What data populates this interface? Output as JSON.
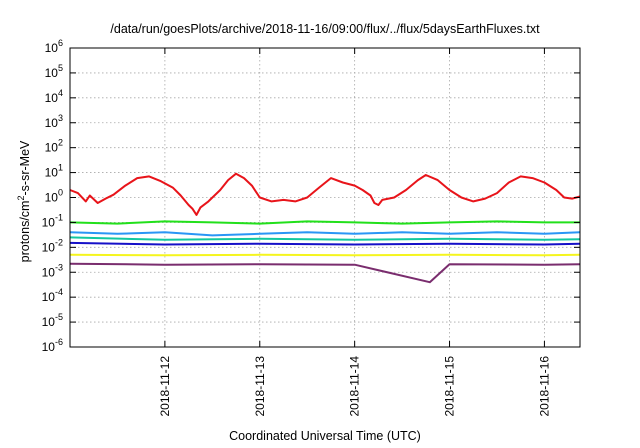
{
  "chart_data": {
    "type": "line",
    "title": "/data/run/goesPlots/archive/2018-11-16/09:00/flux/../flux/5daysEarthFluxes.txt",
    "xlabel": "Coordinated Universal Time (UTC)",
    "ylabel": {
      "base": "protons/cm",
      "sup": "2",
      "rest": "-s-sr-MeV"
    },
    "x_ticks": [
      "2018-11-12",
      "2018-11-13",
      "2018-11-14",
      "2018-11-15",
      "2018-11-16"
    ],
    "xlim": [
      "2018-11-11 00:00",
      "2018-11-16 09:00"
    ],
    "y_scale": "log",
    "ylim": [
      1e-06,
      1000000.0
    ],
    "y_ticks": [
      {
        "base": "10",
        "exp": "6"
      },
      {
        "base": "10",
        "exp": "5"
      },
      {
        "base": "10",
        "exp": "4"
      },
      {
        "base": "10",
        "exp": "3"
      },
      {
        "base": "10",
        "exp": "2"
      },
      {
        "base": "10",
        "exp": "1"
      },
      {
        "base": "10",
        "exp": "0"
      },
      {
        "base": "10",
        "exp": "-1"
      },
      {
        "base": "10",
        "exp": "-2"
      },
      {
        "base": "10",
        "exp": "-3"
      },
      {
        "base": "10",
        "exp": "-4"
      },
      {
        "base": "10",
        "exp": "-5"
      },
      {
        "base": "10",
        "exp": "-6"
      }
    ],
    "grid": true,
    "series": [
      {
        "color": "#e8141a",
        "values": [
          {
            "x": "2018-11-11 00:00",
            "y": 2.0
          },
          {
            "x": "2018-11-11 02:00",
            "y": 1.5
          },
          {
            "x": "2018-11-11 04:00",
            "y": 0.7
          },
          {
            "x": "2018-11-11 05:00",
            "y": 1.2
          },
          {
            "x": "2018-11-11 07:00",
            "y": 0.6
          },
          {
            "x": "2018-11-11 09:00",
            "y": 0.9
          },
          {
            "x": "2018-11-11 11:00",
            "y": 1.3
          },
          {
            "x": "2018-11-11 14:00",
            "y": 3.0
          },
          {
            "x": "2018-11-11 17:00",
            "y": 6.0
          },
          {
            "x": "2018-11-11 20:00",
            "y": 7.0
          },
          {
            "x": "2018-11-11 23:00",
            "y": 4.5
          },
          {
            "x": "2018-11-12 02:00",
            "y": 2.5
          },
          {
            "x": "2018-11-12 04:00",
            "y": 1.2
          },
          {
            "x": "2018-11-12 06:00",
            "y": 0.5
          },
          {
            "x": "2018-11-12 07:00",
            "y": 0.35
          },
          {
            "x": "2018-11-12 08:00",
            "y": 0.2
          },
          {
            "x": "2018-11-12 09:00",
            "y": 0.4
          },
          {
            "x": "2018-11-12 11:00",
            "y": 0.7
          },
          {
            "x": "2018-11-12 14:00",
            "y": 2.0
          },
          {
            "x": "2018-11-12 16:00",
            "y": 5.0
          },
          {
            "x": "2018-11-12 18:00",
            "y": 9.0
          },
          {
            "x": "2018-11-12 20:00",
            "y": 6.0
          },
          {
            "x": "2018-11-12 22:00",
            "y": 3.0
          },
          {
            "x": "2018-11-13 00:00",
            "y": 1.0
          },
          {
            "x": "2018-11-13 03:00",
            "y": 0.7
          },
          {
            "x": "2018-11-13 06:00",
            "y": 0.8
          },
          {
            "x": "2018-11-13 09:00",
            "y": 0.7
          },
          {
            "x": "2018-11-13 12:00",
            "y": 1.0
          },
          {
            "x": "2018-11-13 15:00",
            "y": 2.5
          },
          {
            "x": "2018-11-13 18:00",
            "y": 6.0
          },
          {
            "x": "2018-11-13 21:00",
            "y": 4.0
          },
          {
            "x": "2018-11-14 00:00",
            "y": 3.0
          },
          {
            "x": "2018-11-14 02:00",
            "y": 2.0
          },
          {
            "x": "2018-11-14 04:00",
            "y": 1.2
          },
          {
            "x": "2018-11-14 05:00",
            "y": 0.6
          },
          {
            "x": "2018-11-14 06:00",
            "y": 0.5
          },
          {
            "x": "2018-11-14 07:00",
            "y": 0.8
          },
          {
            "x": "2018-11-14 10:00",
            "y": 1.0
          },
          {
            "x": "2018-11-14 13:00",
            "y": 2.0
          },
          {
            "x": "2018-11-14 16:00",
            "y": 5.0
          },
          {
            "x": "2018-11-14 18:00",
            "y": 8.0
          },
          {
            "x": "2018-11-14 21:00",
            "y": 5.0
          },
          {
            "x": "2018-11-15 00:00",
            "y": 2.0
          },
          {
            "x": "2018-11-15 03:00",
            "y": 1.0
          },
          {
            "x": "2018-11-15 06:00",
            "y": 0.7
          },
          {
            "x": "2018-11-15 09:00",
            "y": 0.9
          },
          {
            "x": "2018-11-15 12:00",
            "y": 1.5
          },
          {
            "x": "2018-11-15 15:00",
            "y": 4.0
          },
          {
            "x": "2018-11-15 18:00",
            "y": 7.0
          },
          {
            "x": "2018-11-15 21:00",
            "y": 6.0
          },
          {
            "x": "2018-11-16 00:00",
            "y": 4.0
          },
          {
            "x": "2018-11-16 03:00",
            "y": 2.0
          },
          {
            "x": "2018-11-16 05:00",
            "y": 1.0
          },
          {
            "x": "2018-11-16 07:00",
            "y": 0.9
          },
          {
            "x": "2018-11-16 09:00",
            "y": 1.1
          }
        ]
      },
      {
        "color": "#22e01b",
        "values": [
          {
            "x": "2018-11-11 00:00",
            "y": 0.1
          },
          {
            "x": "2018-11-11 12:00",
            "y": 0.09
          },
          {
            "x": "2018-11-12 00:00",
            "y": 0.11
          },
          {
            "x": "2018-11-12 12:00",
            "y": 0.1
          },
          {
            "x": "2018-11-13 00:00",
            "y": 0.09
          },
          {
            "x": "2018-11-13 12:00",
            "y": 0.11
          },
          {
            "x": "2018-11-14 00:00",
            "y": 0.1
          },
          {
            "x": "2018-11-14 12:00",
            "y": 0.09
          },
          {
            "x": "2018-11-15 00:00",
            "y": 0.1
          },
          {
            "x": "2018-11-15 12:00",
            "y": 0.11
          },
          {
            "x": "2018-11-16 00:00",
            "y": 0.1
          },
          {
            "x": "2018-11-16 09:00",
            "y": 0.1
          }
        ]
      },
      {
        "color": "#2a96f5",
        "values": [
          {
            "x": "2018-11-11 00:00",
            "y": 0.04
          },
          {
            "x": "2018-11-11 12:00",
            "y": 0.035
          },
          {
            "x": "2018-11-12 00:00",
            "y": 0.04
          },
          {
            "x": "2018-11-12 12:00",
            "y": 0.03
          },
          {
            "x": "2018-11-13 00:00",
            "y": 0.035
          },
          {
            "x": "2018-11-13 12:00",
            "y": 0.04
          },
          {
            "x": "2018-11-14 00:00",
            "y": 0.035
          },
          {
            "x": "2018-11-14 12:00",
            "y": 0.04
          },
          {
            "x": "2018-11-15 00:00",
            "y": 0.035
          },
          {
            "x": "2018-11-15 12:00",
            "y": 0.04
          },
          {
            "x": "2018-11-16 00:00",
            "y": 0.035
          },
          {
            "x": "2018-11-16 09:00",
            "y": 0.04
          }
        ]
      },
      {
        "color": "#12c8a0",
        "values": [
          {
            "x": "2018-11-11 00:00",
            "y": 0.025
          },
          {
            "x": "2018-11-12 00:00",
            "y": 0.02
          },
          {
            "x": "2018-11-13 00:00",
            "y": 0.022
          },
          {
            "x": "2018-11-14 00:00",
            "y": 0.02
          },
          {
            "x": "2018-11-15 00:00",
            "y": 0.022
          },
          {
            "x": "2018-11-16 00:00",
            "y": 0.02
          },
          {
            "x": "2018-11-16 09:00",
            "y": 0.021
          }
        ]
      },
      {
        "color": "#1610c8",
        "values": [
          {
            "x": "2018-11-11 00:00",
            "y": 0.015
          },
          {
            "x": "2018-11-12 00:00",
            "y": 0.013
          },
          {
            "x": "2018-11-13 00:00",
            "y": 0.014
          },
          {
            "x": "2018-11-14 00:00",
            "y": 0.013
          },
          {
            "x": "2018-11-15 00:00",
            "y": 0.014
          },
          {
            "x": "2018-11-16 00:00",
            "y": 0.013
          },
          {
            "x": "2018-11-16 09:00",
            "y": 0.014
          }
        ]
      },
      {
        "color": "#f5f51e",
        "values": [
          {
            "x": "2018-11-11 00:00",
            "y": 0.005
          },
          {
            "x": "2018-11-12 00:00",
            "y": 0.0048
          },
          {
            "x": "2018-11-13 00:00",
            "y": 0.005
          },
          {
            "x": "2018-11-14 00:00",
            "y": 0.0048
          },
          {
            "x": "2018-11-15 00:00",
            "y": 0.005
          },
          {
            "x": "2018-11-16 00:00",
            "y": 0.0048
          },
          {
            "x": "2018-11-16 09:00",
            "y": 0.005
          }
        ]
      },
      {
        "color": "#7a2d6e",
        "values": [
          {
            "x": "2018-11-11 00:00",
            "y": 0.0022
          },
          {
            "x": "2018-11-12 00:00",
            "y": 0.002
          },
          {
            "x": "2018-11-13 00:00",
            "y": 0.0021
          },
          {
            "x": "2018-11-14 00:00",
            "y": 0.002
          },
          {
            "x": "2018-11-14 19:00",
            "y": 0.0004
          },
          {
            "x": "2018-11-15 00:00",
            "y": 0.0021
          },
          {
            "x": "2018-11-16 00:00",
            "y": 0.002
          },
          {
            "x": "2018-11-16 09:00",
            "y": 0.0021
          }
        ]
      }
    ]
  }
}
